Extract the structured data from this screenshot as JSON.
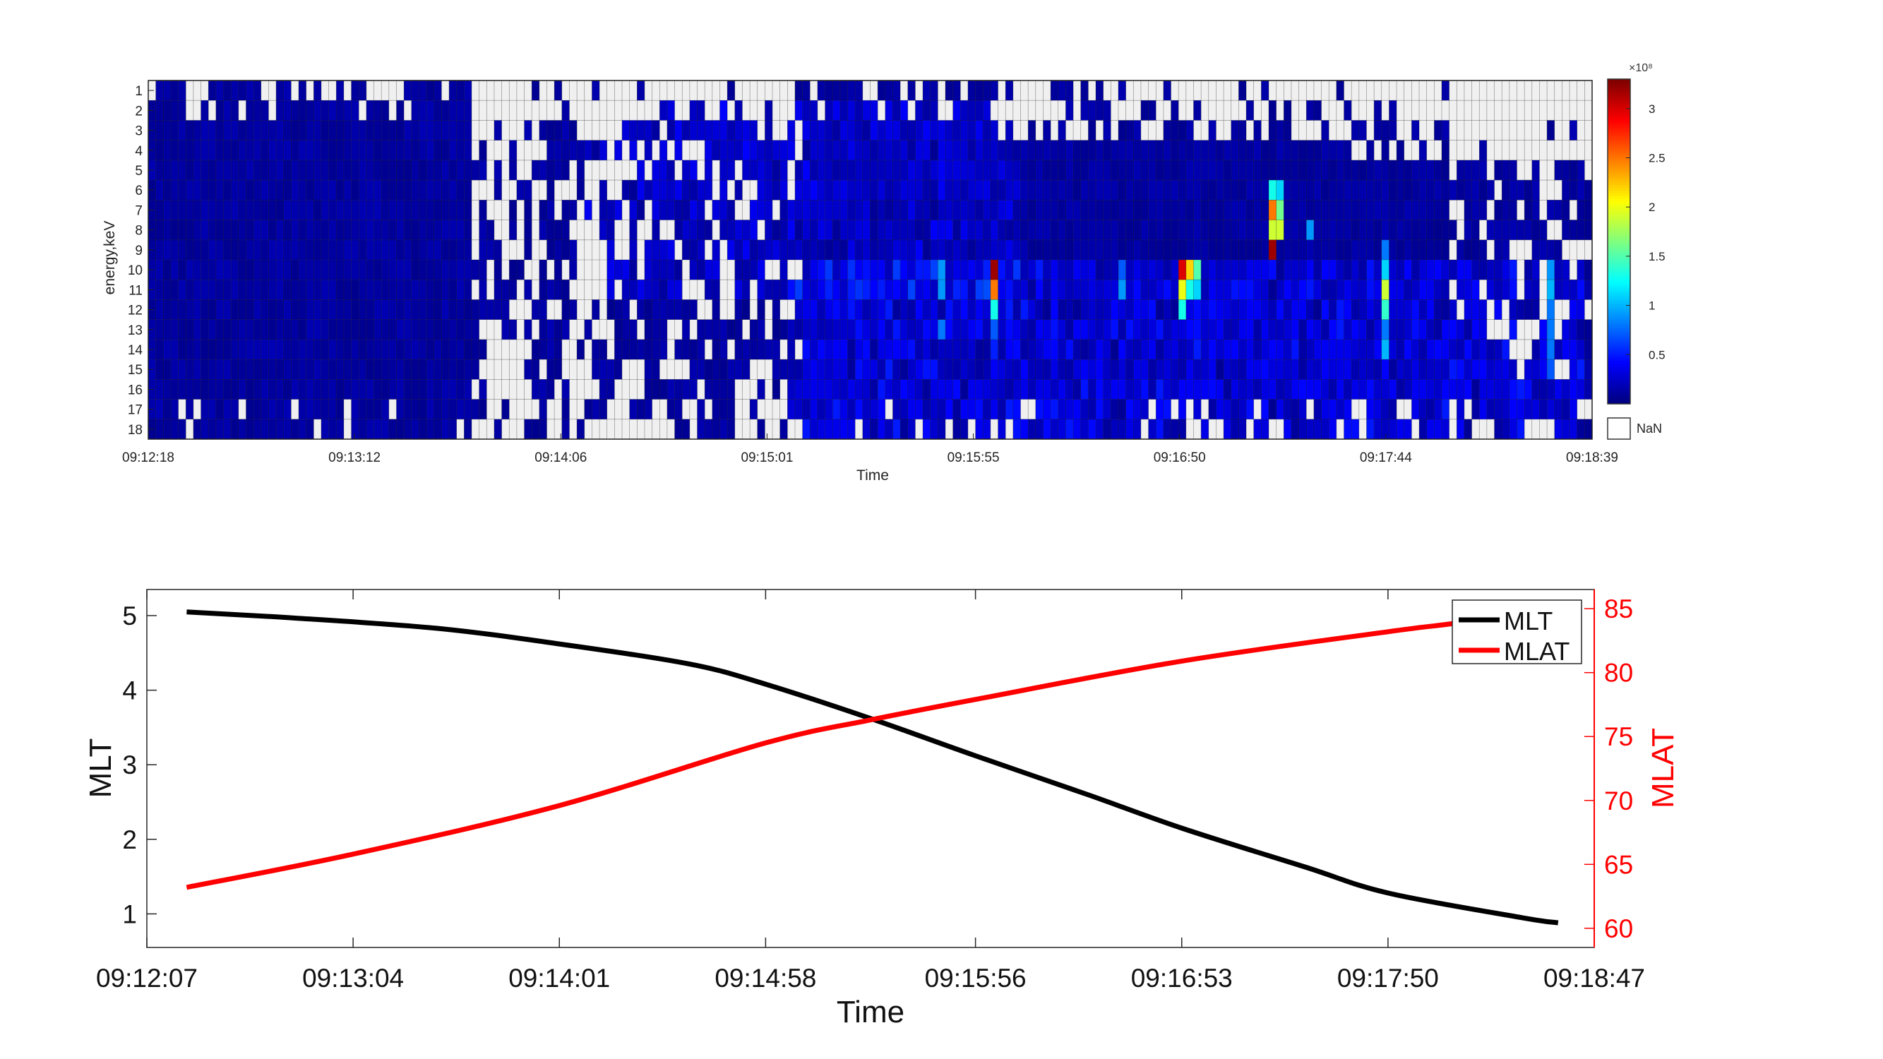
{
  "chart_data": [
    {
      "type": "heatmap",
      "title": "",
      "xlabel": "Time",
      "ylabel": "energy,keV",
      "x_tick_labels": [
        "09:12:18",
        "09:13:12",
        "09:14:06",
        "09:15:01",
        "09:15:55",
        "09:16:50",
        "09:17:44",
        "09:18:39"
      ],
      "y_tick_labels": [
        "1",
        "2",
        "3",
        "4",
        "5",
        "6",
        "7",
        "8",
        "9",
        "10",
        "11",
        "12",
        "13",
        "14",
        "15",
        "16",
        "17",
        "18"
      ],
      "n_time_bins": 192,
      "colorscale": "jet",
      "colorbar": {
        "multiplier_label": "×10⁸",
        "tick_labels": [
          "0.5",
          "1",
          "1.5",
          "2",
          "2.5",
          "3"
        ],
        "ticks": [
          0.5,
          1,
          1.5,
          2,
          2.5,
          3
        ],
        "range": [
          0,
          3.3
        ],
        "nan_label": "NaN"
      },
      "nan_color": "#f0f0f0",
      "background_level": 0.05,
      "hotspots": [
        {
          "time_frac": 0.585,
          "rows": [
            10,
            11,
            12,
            13
          ],
          "values": [
            3.2,
            2.4,
            1.5,
            0.7
          ]
        },
        {
          "time_frac": 0.582,
          "rows": [
            11,
            12
          ],
          "values": [
            2.5,
            1.3
          ]
        },
        {
          "time_frac": 0.712,
          "rows": [
            10,
            11,
            12
          ],
          "values": [
            3.0,
            2.0,
            1.3
          ]
        },
        {
          "time_frac": 0.717,
          "rows": [
            10,
            11
          ],
          "values": [
            2.2,
            1.3
          ]
        },
        {
          "time_frac": 0.722,
          "rows": [
            10,
            11
          ],
          "values": [
            1.5,
            1.1
          ]
        },
        {
          "time_frac": 0.775,
          "rows": [
            6,
            7,
            8,
            9
          ],
          "values": [
            1.3,
            2.5,
            1.9,
            3.2
          ]
        },
        {
          "time_frac": 0.78,
          "rows": [
            6,
            7,
            8
          ],
          "values": [
            1.1,
            1.6,
            1.9
          ]
        },
        {
          "time_frac": 0.855,
          "rows": [
            9,
            10,
            11,
            12,
            13,
            14
          ],
          "values": [
            0.8,
            1.1,
            1.9,
            1.4,
            0.8,
            1.0
          ]
        },
        {
          "time_frac": 0.545,
          "rows": [
            10,
            11,
            13
          ],
          "values": [
            0.9,
            0.9,
            0.8
          ]
        },
        {
          "time_frac": 0.97,
          "rows": [
            10,
            11,
            12,
            13,
            14,
            15
          ],
          "values": [
            0.9,
            1.0,
            0.8,
            0.8,
            0.8,
            0.7
          ]
        },
        {
          "time_frac": 0.67,
          "rows": [
            10,
            11
          ],
          "values": [
            0.7,
            0.9
          ]
        },
        {
          "time_frac": 0.8,
          "rows": [
            8
          ],
          "values": [
            0.9
          ]
        }
      ]
    },
    {
      "type": "line",
      "title": "",
      "xlabel": "Time",
      "ylabel_left": "MLT",
      "ylabel_right": "MLAT",
      "x_tick_labels": [
        "09:12:07",
        "09:13:04",
        "09:14:01",
        "09:14:58",
        "09:15:56",
        "09:16:53",
        "09:17:50",
        "09:18:47"
      ],
      "x_tick_seconds": [
        0,
        57,
        114,
        171,
        229,
        286,
        343,
        400
      ],
      "xlim_seconds": [
        0,
        400
      ],
      "ylim_left": [
        0.55,
        5.35
      ],
      "yticks_left": [
        "1",
        "2",
        "3",
        "4",
        "5"
      ],
      "ylim_right": [
        58.5,
        86.5
      ],
      "yticks_right": [
        "60",
        "65",
        "70",
        "75",
        "80",
        "85"
      ],
      "legend": {
        "placement": "top-right",
        "entries": [
          "MLT",
          "MLAT"
        ]
      },
      "series": [
        {
          "name": "MLT",
          "axis": "left",
          "color": "#000000",
          "x_seconds": [
            11,
            40,
            80,
            114,
            150,
            171,
            200,
            229,
            260,
            286,
            320,
            343,
            380,
            390
          ],
          "values": [
            5.05,
            4.97,
            4.83,
            4.62,
            4.35,
            4.08,
            3.62,
            3.12,
            2.6,
            2.15,
            1.63,
            1.28,
            0.95,
            0.88
          ]
        },
        {
          "name": "MLAT",
          "axis": "right",
          "color": "#ff0000",
          "x_seconds": [
            11,
            57,
            114,
            171,
            200,
            229,
            286,
            343,
            360,
            380
          ],
          "values": [
            63.2,
            65.8,
            69.6,
            74.5,
            76.3,
            77.9,
            80.9,
            83.2,
            83.8,
            84.6
          ]
        }
      ]
    }
  ]
}
